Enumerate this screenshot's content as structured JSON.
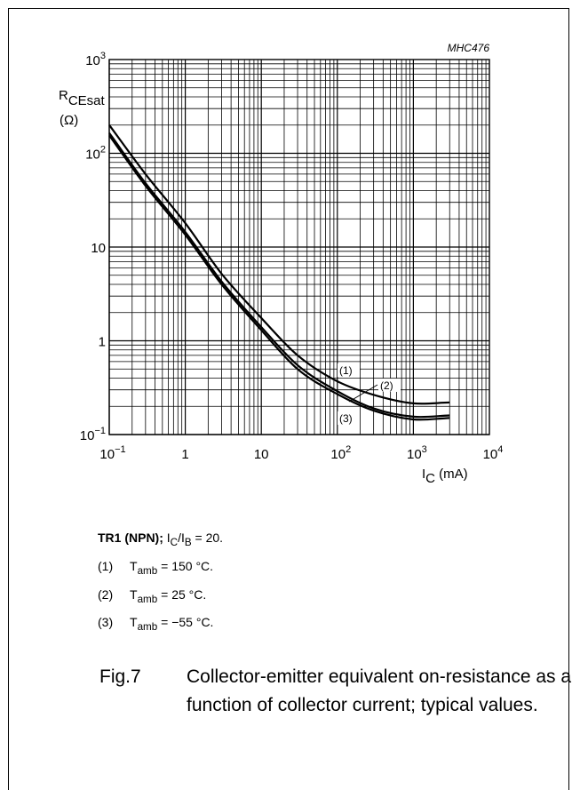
{
  "chart_data": {
    "type": "line",
    "title": "",
    "figure_code": "MHC476",
    "xscale": "log",
    "yscale": "log",
    "xlim": [
      0.1,
      10000
    ],
    "ylim": [
      0.1,
      1000
    ],
    "grid": true,
    "x_ticks": [
      {
        "base": "10",
        "exp": "−1"
      },
      {
        "base": "1",
        "exp": ""
      },
      {
        "base": "10",
        "exp": ""
      },
      {
        "base": "10",
        "exp": "2"
      },
      {
        "base": "10",
        "exp": "3"
      },
      {
        "base": "10",
        "exp": "4"
      }
    ],
    "y_ticks": [
      {
        "base": "10",
        "exp": "−1"
      },
      {
        "base": "1",
        "exp": ""
      },
      {
        "base": "10",
        "exp": ""
      },
      {
        "base": "10",
        "exp": "2"
      },
      {
        "base": "10",
        "exp": "3"
      }
    ],
    "xlabel": {
      "main": "I",
      "sub": "C",
      "unit": " (mA)"
    },
    "ylabel": {
      "main": "R",
      "sub": "CEsat",
      "unit": "(Ω)"
    },
    "series": [
      {
        "name": "(1)",
        "x": [
          0.1,
          0.3,
          1,
          3,
          10,
          30,
          100,
          300,
          1000,
          3000
        ],
        "y": [
          200,
          60,
          18,
          5.2,
          1.75,
          0.7,
          0.37,
          0.265,
          0.215,
          0.22
        ]
      },
      {
        "name": "(2)",
        "x": [
          0.1,
          0.3,
          1,
          3,
          10,
          30,
          100,
          300,
          1000,
          3000
        ],
        "y": [
          165,
          48,
          14.5,
          4.3,
          1.4,
          0.55,
          0.29,
          0.19,
          0.155,
          0.16
        ]
      },
      {
        "name": "(3)",
        "x": [
          0.1,
          0.3,
          1,
          3,
          10,
          30,
          100,
          300,
          1000,
          3000
        ],
        "y": [
          155,
          45,
          13.5,
          4.0,
          1.3,
          0.5,
          0.27,
          0.18,
          0.145,
          0.15
        ]
      }
    ],
    "annotations": [
      "(1)",
      "(2)",
      "(3)"
    ]
  },
  "notes": {
    "title": {
      "bold": "TR1 (NPN);",
      "rest_a": " I",
      "sub_a": "C",
      "rest_b": "/I",
      "sub_b": "B",
      "rest_c": " = 20."
    },
    "items": [
      {
        "num": "(1)",
        "main": "T",
        "sub": "amb",
        "rest": " = 150 °C."
      },
      {
        "num": "(2)",
        "main": "T",
        "sub": "amb",
        "rest": " = 25 °C."
      },
      {
        "num": "(3)",
        "main": "T",
        "sub": "amb",
        "rest": " = −55 °C."
      }
    ]
  },
  "caption": {
    "fig": "Fig.7",
    "text": "Collector-emitter equivalent on-resistance as a function of collector current; typical values."
  }
}
